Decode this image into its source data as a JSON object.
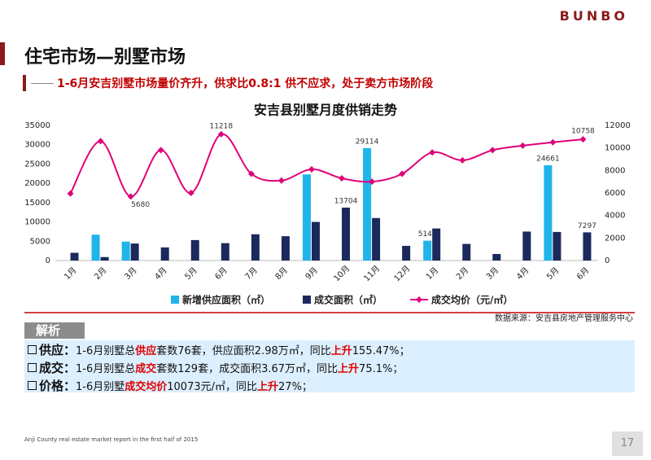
{
  "header": {
    "logo": "BUNBO",
    "title": "住宅市场—别墅市场",
    "subtitle": "1-6月安吉别墅市场量价齐升，供求比0.8:1 供不应求，处于卖方市场阶段"
  },
  "chart_data": {
    "type": "bar-line",
    "title": "安吉县别墅月度供销走势",
    "categories": [
      "1月",
      "2月",
      "3月",
      "4月",
      "5月",
      "6月",
      "7月",
      "8月",
      "9月",
      "10月",
      "11月",
      "12月",
      "1月",
      "2月",
      "3月",
      "4月",
      "5月",
      "6月"
    ],
    "series": [
      {
        "name": "新增供应面积（㎡）",
        "type": "bar",
        "color": "#1fb4ea",
        "values": [
          0,
          6700,
          4900,
          0,
          0,
          0,
          0,
          0,
          22300,
          0,
          29114,
          0,
          5140,
          0,
          0,
          0,
          24661,
          0
        ],
        "value_labels": [
          null,
          null,
          null,
          null,
          null,
          null,
          null,
          null,
          null,
          null,
          "29114",
          null,
          "5140",
          null,
          null,
          null,
          "24661",
          null
        ]
      },
      {
        "name": "成交面积（㎡）",
        "type": "bar",
        "color": "#1b2a5c",
        "values": [
          2000,
          900,
          4400,
          3400,
          5300,
          4500,
          6800,
          6300,
          10000,
          13704,
          11000,
          3800,
          8300,
          4300,
          1700,
          7500,
          7400,
          7297
        ],
        "value_labels": [
          null,
          null,
          null,
          null,
          null,
          null,
          null,
          null,
          null,
          "13704",
          null,
          null,
          null,
          null,
          null,
          null,
          null,
          "7297"
        ]
      },
      {
        "name": "成交均价（元/㎡）",
        "type": "line",
        "axis": "y2",
        "color": "#e0007a",
        "values": [
          5950,
          10600,
          5680,
          9800,
          6000,
          11218,
          7700,
          7100,
          8100,
          7300,
          7000,
          7700,
          9600,
          8900,
          9800,
          10200,
          10500,
          10758
        ],
        "value_labels": [
          null,
          null,
          "5680",
          null,
          null,
          "11218",
          null,
          null,
          null,
          null,
          null,
          null,
          null,
          null,
          null,
          null,
          null,
          "10758"
        ]
      }
    ],
    "ylim": [
      0,
      35000
    ],
    "yticks": [
      0,
      5000,
      10000,
      15000,
      20000,
      25000,
      30000,
      35000
    ],
    "y2lim": [
      0,
      12000
    ],
    "y2ticks": [
      0,
      2000,
      4000,
      6000,
      8000,
      10000,
      12000
    ],
    "legend": "bottom",
    "source": "数据来源：安吉县房地产管理服务中心"
  },
  "analysis": {
    "title": "解析",
    "items": [
      {
        "label": "供应：",
        "segments": [
          {
            "text": "1-6月别墅总",
            "emphasis": false
          },
          {
            "text": "供应",
            "emphasis": true
          },
          {
            "text": "套数76套，供应面积2.98万㎡，同比",
            "emphasis": false
          },
          {
            "text": "上升",
            "emphasis": true
          },
          {
            "text": "155.47%；",
            "emphasis": false
          }
        ]
      },
      {
        "label": "成交：",
        "segments": [
          {
            "text": "1-6月别墅总",
            "emphasis": false
          },
          {
            "text": "成交",
            "emphasis": true
          },
          {
            "text": "套数129套，成交面积3.67万㎡，同比",
            "emphasis": false
          },
          {
            "text": "上升",
            "emphasis": true
          },
          {
            "text": "75.1%；",
            "emphasis": false
          }
        ]
      },
      {
        "label": "价格：",
        "segments": [
          {
            "text": "1-6月别墅",
            "emphasis": false
          },
          {
            "text": "成交均价",
            "emphasis": true
          },
          {
            "text": "10073元/㎡，同比",
            "emphasis": false
          },
          {
            "text": "上升",
            "emphasis": true
          },
          {
            "text": "27%；",
            "emphasis": false
          }
        ]
      }
    ]
  },
  "footer": {
    "note": "Anji County real estate market report in the first half of 2015",
    "page": "17"
  }
}
